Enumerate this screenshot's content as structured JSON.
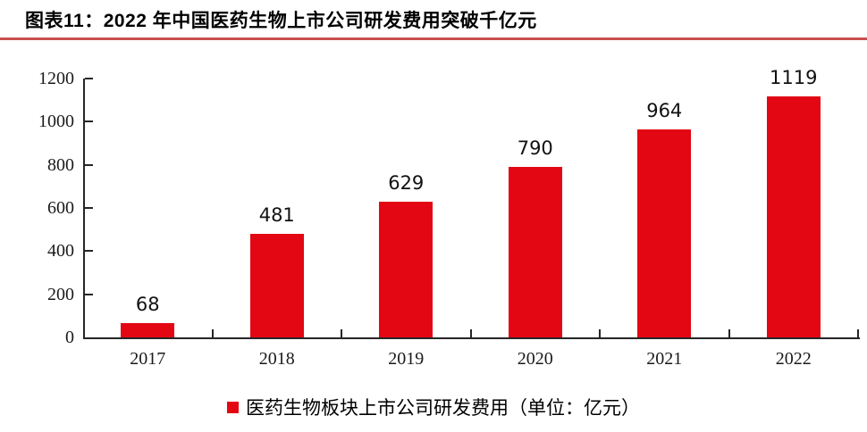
{
  "header": {
    "title": "图表11：2022 年中国医药生物上市公司研发费用突破千亿元"
  },
  "legend": {
    "label": "医药生物板块上市公司研发费用（单位：亿元）",
    "marker": "red-square"
  },
  "colors": {
    "bar": "#e30613",
    "title_rule": "#c9504e",
    "axis": "#262626",
    "value_label": "#111111",
    "tick_label": "#1a1a1a"
  },
  "chart_data": {
    "type": "bar",
    "title": "图表11：2022 年中国医药生物上市公司研发费用突破千亿元",
    "categories": [
      "2017",
      "2018",
      "2019",
      "2020",
      "2021",
      "2022"
    ],
    "values": [
      68,
      481,
      629,
      790,
      964,
      1119
    ],
    "data_labels": [
      "68",
      "481",
      "629",
      "790",
      "964",
      "1119"
    ],
    "series": [
      {
        "name": "医药生物板块上市公司研发费用（单位：亿元）",
        "values": [
          68,
          481,
          629,
          790,
          964,
          1119
        ]
      }
    ],
    "xlabel": "",
    "ylabel": "",
    "ylim": [
      0,
      1200
    ],
    "yticks": [
      0,
      200,
      400,
      600,
      800,
      1000,
      1200
    ],
    "grid": false,
    "tick_direction": "in",
    "legend_position": "bottom",
    "bar_color": "#e30613"
  }
}
